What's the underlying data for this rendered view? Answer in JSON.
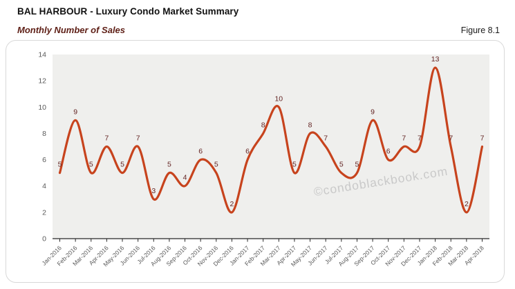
{
  "header": {
    "title": "BAL HARBOUR - Luxury Condo Market Summary",
    "subtitle": "Monthly Number of Sales",
    "figure_label": "Figure 8.1"
  },
  "watermark": "©condoblackbook.com",
  "colors": {
    "line": "#C7431D",
    "data_label": "#632423",
    "title_text": "#111111",
    "subtitle_text": "#5E1F16",
    "plot_bg": "#EFEFED",
    "axis_text": "#595959",
    "axis_line": "#262626",
    "card_border": "#D8D8D8",
    "card_bg": "#FFFFFF",
    "watermark_text": "#C9C9C9"
  },
  "chart_data": {
    "type": "line",
    "title": "Monthly Number of Sales",
    "x": [
      "Jan-2016",
      "Feb-2016",
      "Mar-2016",
      "Apr-2016",
      "May-2016",
      "Jun-2016",
      "Jul-2016",
      "Aug-2016",
      "Sep-2016",
      "Oct-2016",
      "Nov-2016",
      "Dec-2016",
      "Jan-2017",
      "Feb-2017",
      "Mar-2017",
      "Apr-2017",
      "May-2017",
      "Jun-2017",
      "Jul-2017",
      "Aug-2017",
      "Sep-2017",
      "Oct-2017",
      "Nov-2017",
      "Dec-2017",
      "Jan-2018",
      "Feb-2018",
      "Mar-2018",
      "Apr-2018"
    ],
    "values": [
      5,
      9,
      5,
      7,
      5,
      7,
      3,
      5,
      4,
      6,
      5,
      2,
      6,
      8,
      10,
      5,
      8,
      7,
      5,
      5,
      9,
      6,
      7,
      7,
      13,
      7,
      2,
      7
    ],
    "xlabel": "",
    "ylabel": "",
    "ylim": [
      0,
      14
    ],
    "ytick_step": 2,
    "grid": false,
    "smooth": true,
    "data_labels": true,
    "legend_position": "none"
  }
}
